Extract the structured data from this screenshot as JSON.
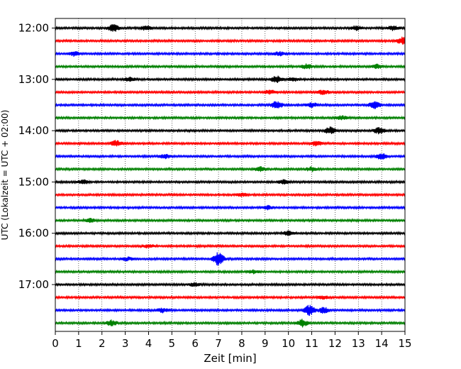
{
  "chart_data": {
    "type": "line",
    "plot_kind": "helicorder",
    "xlabel": "Zeit  [min]",
    "ylabel": "UTC (Lokalzeit = UTC + 02:00)",
    "xlim": [
      0,
      15
    ],
    "x_ticks": [
      0,
      1,
      2,
      3,
      4,
      5,
      6,
      7,
      8,
      9,
      10,
      11,
      12,
      13,
      14,
      15
    ],
    "x_tick_labels": [
      "0",
      "1",
      "2",
      "3",
      "4",
      "5",
      "6",
      "7",
      "8",
      "9",
      "10",
      "11",
      "12",
      "13",
      "14",
      "15"
    ],
    "y_tick_labels": [
      "12:00",
      "13:00",
      "14:00",
      "15:00",
      "16:00",
      "17:00"
    ],
    "grid": {
      "x": true,
      "y": false,
      "style": "dotted"
    },
    "trace_minutes": 15,
    "trace_colors": [
      "#000000",
      "#ff0000",
      "#0000ff",
      "#008000"
    ],
    "traces": [
      {
        "start": "12:00",
        "color": "#000000",
        "events": [
          {
            "minute": 2.5,
            "amp": 0.5
          },
          {
            "minute": 3.9,
            "amp": 0.35
          },
          {
            "minute": 12.9,
            "amp": 0.3
          },
          {
            "minute": 14.5,
            "amp": 0.35
          }
        ]
      },
      {
        "start": "12:15",
        "color": "#ff0000",
        "events": [
          {
            "minute": 14.9,
            "amp": 0.5
          }
        ]
      },
      {
        "start": "12:30",
        "color": "#0000ff",
        "events": [
          {
            "minute": 0.8,
            "amp": 0.3
          },
          {
            "minute": 9.6,
            "amp": 0.3
          }
        ]
      },
      {
        "start": "12:45",
        "color": "#008000",
        "events": [
          {
            "minute": 10.8,
            "amp": 0.35
          },
          {
            "minute": 13.8,
            "amp": 0.3
          }
        ]
      },
      {
        "start": "13:00",
        "color": "#000000",
        "events": [
          {
            "minute": 3.2,
            "amp": 0.3
          },
          {
            "minute": 9.5,
            "amp": 0.5
          },
          {
            "minute": 10.2,
            "amp": 0.3
          }
        ]
      },
      {
        "start": "13:15",
        "color": "#ff0000",
        "events": [
          {
            "minute": 9.2,
            "amp": 0.3
          },
          {
            "minute": 11.5,
            "amp": 0.35
          }
        ]
      },
      {
        "start": "13:30",
        "color": "#0000ff",
        "events": [
          {
            "minute": 9.5,
            "amp": 0.55
          },
          {
            "minute": 11.0,
            "amp": 0.35
          },
          {
            "minute": 13.7,
            "amp": 0.5
          }
        ]
      },
      {
        "start": "13:45",
        "color": "#008000",
        "events": [
          {
            "minute": 12.3,
            "amp": 0.3
          }
        ]
      },
      {
        "start": "14:00",
        "color": "#000000",
        "events": [
          {
            "minute": 11.8,
            "amp": 0.5
          },
          {
            "minute": 13.9,
            "amp": 0.45
          }
        ]
      },
      {
        "start": "14:15",
        "color": "#ff0000",
        "events": [
          {
            "minute": 2.6,
            "amp": 0.45
          },
          {
            "minute": 11.2,
            "amp": 0.35
          }
        ]
      },
      {
        "start": "14:30",
        "color": "#0000ff",
        "events": [
          {
            "minute": 4.7,
            "amp": 0.3
          },
          {
            "minute": 14.0,
            "amp": 0.45
          }
        ]
      },
      {
        "start": "14:45",
        "color": "#008000",
        "events": [
          {
            "minute": 8.8,
            "amp": 0.35
          },
          {
            "minute": 11.0,
            "amp": 0.3
          }
        ]
      },
      {
        "start": "15:00",
        "color": "#000000",
        "events": [
          {
            "minute": 1.2,
            "amp": 0.3
          },
          {
            "minute": 9.8,
            "amp": 0.3
          }
        ]
      },
      {
        "start": "15:15",
        "color": "#ff0000",
        "events": [
          {
            "minute": 8.0,
            "amp": 0.25
          }
        ]
      },
      {
        "start": "15:30",
        "color": "#0000ff",
        "events": [
          {
            "minute": 9.1,
            "amp": 0.3
          }
        ]
      },
      {
        "start": "15:45",
        "color": "#008000",
        "events": [
          {
            "minute": 1.5,
            "amp": 0.25
          }
        ]
      },
      {
        "start": "16:00",
        "color": "#000000",
        "events": [
          {
            "minute": 10.0,
            "amp": 0.3
          }
        ]
      },
      {
        "start": "16:15",
        "color": "#ff0000",
        "events": [
          {
            "minute": 4.0,
            "amp": 0.25
          }
        ]
      },
      {
        "start": "16:30",
        "color": "#0000ff",
        "events": [
          {
            "minute": 7.0,
            "amp": 0.95
          },
          {
            "minute": 3.1,
            "amp": 0.25
          }
        ]
      },
      {
        "start": "16:45",
        "color": "#008000",
        "events": [
          {
            "minute": 8.5,
            "amp": 0.25
          }
        ]
      },
      {
        "start": "17:00",
        "color": "#000000",
        "events": [
          {
            "minute": 6.0,
            "amp": 0.25
          }
        ]
      },
      {
        "start": "17:15",
        "color": "#ff0000",
        "events": [
          {
            "minute": 11.5,
            "amp": 0.25
          }
        ]
      },
      {
        "start": "17:30",
        "color": "#0000ff",
        "events": [
          {
            "minute": 10.9,
            "amp": 0.75
          },
          {
            "minute": 11.5,
            "amp": 0.45
          },
          {
            "minute": 4.6,
            "amp": 0.3
          }
        ]
      },
      {
        "start": "17:45",
        "color": "#008000",
        "events": [
          {
            "minute": 2.4,
            "amp": 0.4
          },
          {
            "minute": 10.6,
            "amp": 0.5
          }
        ]
      }
    ]
  }
}
